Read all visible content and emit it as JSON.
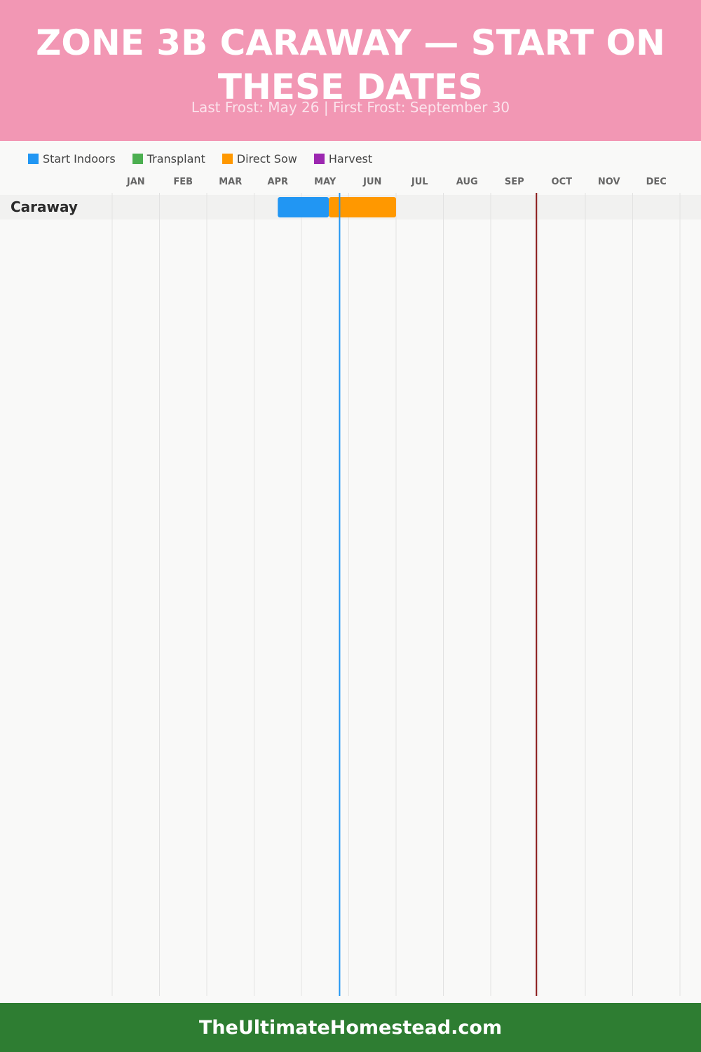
{
  "header": {
    "title": "ZONE 3B CARAWAY — START ON THESE DATES",
    "subtitle": "Last Frost: May 26 | First Frost: September 30"
  },
  "colors": {
    "header_bg": "#f297b4",
    "footer_bg": "#2e7d32",
    "last_frost_line": "#2196f3",
    "first_frost_line": "#8b1a1a"
  },
  "chart_data": {
    "type": "gantt",
    "categories": [
      "JAN",
      "FEB",
      "MAR",
      "APR",
      "MAY",
      "JUN",
      "JUL",
      "AUG",
      "SEP",
      "OCT",
      "NOV",
      "DEC"
    ],
    "legend": [
      {
        "name": "Start Indoors",
        "color": "#2196f3"
      },
      {
        "name": "Transplant",
        "color": "#4caf50"
      },
      {
        "name": "Direct Sow",
        "color": "#ff9800"
      },
      {
        "name": "Harvest",
        "color": "#9c27b0"
      }
    ],
    "rows": [
      {
        "name": "Caraway",
        "segments": [
          {
            "series": "Start Indoors",
            "start": "Apr 16",
            "end": "May 19"
          },
          {
            "series": "Direct Sow",
            "start": "May 19",
            "end": "Jul 1"
          }
        ]
      }
    ],
    "markers": [
      {
        "name": "Last Frost",
        "date": "May 26",
        "color": "#2196f3"
      },
      {
        "name": "First Frost",
        "date": "Sep 30",
        "color": "#8b1a1a"
      }
    ],
    "grid": true,
    "legend_position": "top-left"
  },
  "footer": {
    "text": "TheUltimateHomestead.com"
  }
}
